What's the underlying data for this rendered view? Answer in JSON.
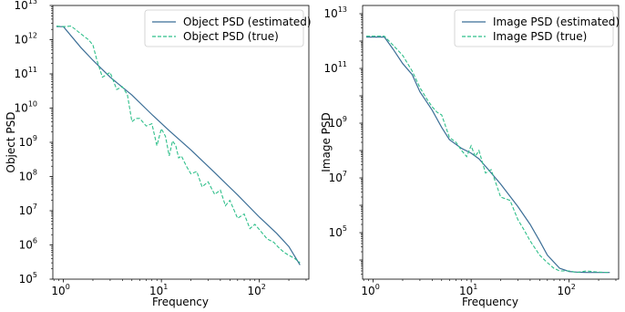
{
  "chart_data": [
    {
      "type": "line",
      "xscale": "log",
      "yscale": "log",
      "xlabel": "Frequency",
      "ylabel": "Object PSD",
      "xlim": [
        0.78,
        320
      ],
      "ylim": [
        100000,
        10000000000000
      ],
      "xticks": [
        {
          "base": "10",
          "exp": "0",
          "value": 1
        },
        {
          "base": "10",
          "exp": "1",
          "value": 10
        },
        {
          "base": "10",
          "exp": "2",
          "value": 100
        }
      ],
      "yticks": [
        {
          "base": "10",
          "exp": "5",
          "value": 100000
        },
        {
          "base": "10",
          "exp": "6",
          "value": 1000000
        },
        {
          "base": "10",
          "exp": "7",
          "value": 10000000
        },
        {
          "base": "10",
          "exp": "8",
          "value": 100000000
        },
        {
          "base": "10",
          "exp": "9",
          "value": 1000000000
        },
        {
          "base": "10",
          "exp": "10",
          "value": 10000000000
        },
        {
          "base": "10",
          "exp": "11",
          "value": 100000000000
        },
        {
          "base": "10",
          "exp": "12",
          "value": 1000000000000
        },
        {
          "base": "10",
          "exp": "13",
          "value": 10000000000000
        }
      ],
      "legend_position": "top-right",
      "series": [
        {
          "name": "Object PSD (estimated)",
          "color": "#3b6e96",
          "style": "solid",
          "x": [
            0.85,
            1.0,
            1.5,
            2.0,
            3.0,
            5.0,
            8.0,
            12.0,
            20.0,
            35.0,
            60.0,
            100.0,
            150.0,
            200.0,
            260.0
          ],
          "y": [
            2400000000000.0,
            2400000000000.0,
            600000000000.0,
            250000000000.0,
            80000000000.0,
            24000000000.0,
            6500000000.0,
            2200000000.0,
            600000000.0,
            130000000.0,
            29000000.0,
            6500000.0,
            2200000.0,
            900000.0,
            260000.0
          ]
        },
        {
          "name": "Object PSD (true)",
          "color": "#2fbf8a",
          "style": "dashed",
          "x": [
            0.85,
            1.0,
            1.2,
            1.5,
            1.8,
            2.0,
            2.2,
            2.5,
            3.0,
            3.5,
            4.0,
            4.5,
            5.0,
            5.5,
            6.0,
            7.0,
            8.0,
            9.0,
            10.0,
            11.0,
            12.0,
            13.0,
            14.0,
            15.0,
            16.0,
            18.0,
            20.0,
            23.0,
            26.0,
            30.0,
            35.0,
            40.0,
            45.0,
            50.0,
            60.0,
            70.0,
            80.0,
            90.0,
            100.0,
            120.0,
            140.0,
            160.0,
            180.0,
            200.0,
            230.0,
            260.0
          ],
          "y": [
            2500000000000.0,
            2400000000000.0,
            2500000000000.0,
            1500000000000.0,
            1000000000000.0,
            700000000000.0,
            250000000000.0,
            80000000000.0,
            110000000000.0,
            35000000000.0,
            42000000000.0,
            25000000000.0,
            4000000000.0,
            5000000000.0,
            5000000000.0,
            3000000000.0,
            3500000000.0,
            800000000.0,
            2500000000.0,
            1500000000.0,
            400000000.0,
            1100000000.0,
            800000000.0,
            350000000.0,
            400000000.0,
            200000000.0,
            120000000.0,
            140000000.0,
            50000000.0,
            70000000.0,
            30000000.0,
            40000000.0,
            14000000.0,
            20000000.0,
            6000000.0,
            8000000.0,
            3000000.0,
            4000000.0,
            2800000.0,
            1500000.0,
            1200000.0,
            800000.0,
            600000.0,
            500000.0,
            400000.0,
            300000.0
          ]
        }
      ]
    },
    {
      "type": "line",
      "xscale": "log",
      "yscale": "log",
      "xlabel": "Frequency",
      "ylabel": "Image PSD",
      "xlim": [
        0.78,
        320
      ],
      "ylim": [
        2000,
        20000000000000
      ],
      "xticks": [
        {
          "base": "10",
          "exp": "0",
          "value": 1
        },
        {
          "base": "10",
          "exp": "1",
          "value": 10
        },
        {
          "base": "10",
          "exp": "2",
          "value": 100
        }
      ],
      "yticks": [
        {
          "base": "10",
          "exp": "5",
          "value": 100000
        },
        {
          "base": "10",
          "exp": "7",
          "value": 10000000
        },
        {
          "base": "10",
          "exp": "9",
          "value": 1000000000
        },
        {
          "base": "10",
          "exp": "11",
          "value": 100000000000
        },
        {
          "base": "10",
          "exp": "13",
          "value": 10000000000000
        }
      ],
      "legend_position": "top-right",
      "series": [
        {
          "name": "Image PSD (estimated)",
          "color": "#3b6e96",
          "style": "solid",
          "x": [
            0.85,
            1.0,
            1.3,
            1.6,
            2.0,
            2.5,
            3.0,
            4.0,
            5.0,
            6.0,
            8.0,
            10.0,
            12.0,
            15.0,
            20.0,
            30.0,
            40.0,
            50.0,
            60.0,
            80.0,
            100.0,
            120.0,
            150.0,
            200.0,
            260.0
          ],
          "y": [
            1400000000000.0,
            1400000000000.0,
            1400000000000.0,
            500000000000.0,
            150000000000.0,
            60000000000.0,
            14000000000.0,
            3000000000.0,
            700000000.0,
            250000000.0,
            120000000.0,
            80000000.0,
            50000000.0,
            20000000.0,
            6000000.0,
            900000.0,
            200000.0,
            50000.0,
            15000.0,
            5000,
            3800,
            3600,
            3500,
            3500,
            3500
          ]
        },
        {
          "name": "Image PSD (true)",
          "color": "#2fbf8a",
          "style": "dashed",
          "x": [
            0.85,
            1.0,
            1.3,
            1.6,
            2.0,
            2.5,
            3.0,
            3.5,
            4.0,
            4.5,
            5.0,
            6.0,
            7.0,
            8.0,
            9.0,
            10.0,
            11.0,
            12.0,
            14.0,
            16.0,
            18.0,
            20.0,
            25.0,
            30.0,
            35.0,
            40.0,
            50.0,
            60.0,
            70.0,
            80.0,
            100.0,
            120.0,
            150.0,
            200.0,
            260.0
          ],
          "y": [
            1500000000000.0,
            1500000000000.0,
            1500000000000.0,
            700000000000.0,
            300000000000.0,
            80000000000.0,
            20000000000.0,
            8000000000.0,
            4000000000.0,
            2500000000.0,
            2000000000.0,
            300000000.0,
            200000000.0,
            100000000.0,
            60000000.0,
            150000000.0,
            60000000.0,
            100000000.0,
            15000000.0,
            20000000.0,
            6000000.0,
            2000000.0,
            1500000.0,
            300000.0,
            120000.0,
            50000.0,
            15000.0,
            8000,
            5000,
            4000,
            4000,
            3500,
            4000,
            3600,
            3500
          ]
        }
      ]
    }
  ]
}
